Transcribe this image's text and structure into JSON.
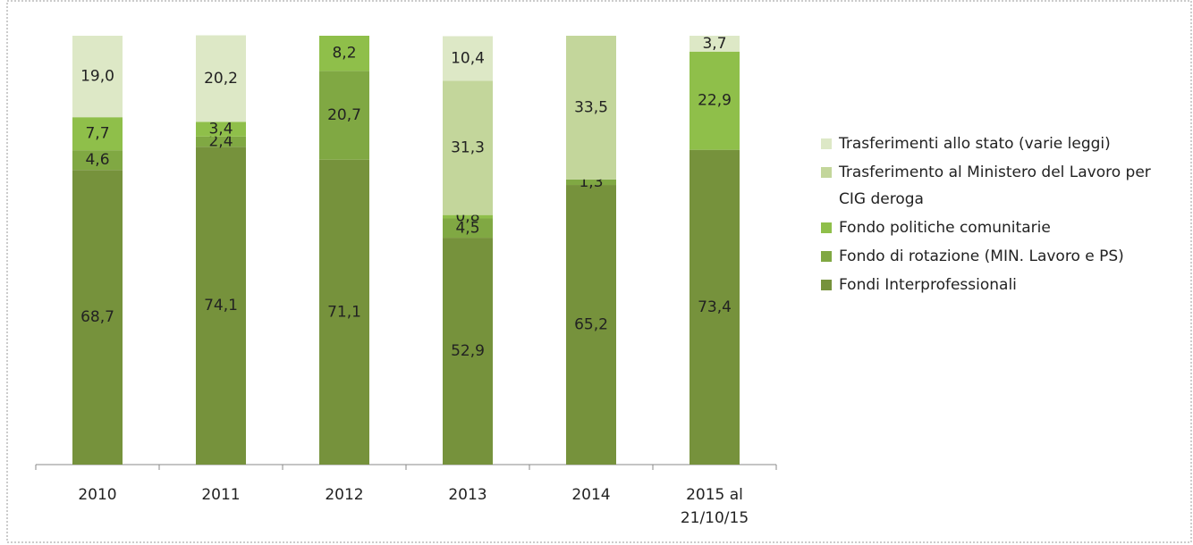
{
  "chart_data": {
    "type": "stacked_bar",
    "categories": [
      "2010",
      "2011",
      "2012",
      "2013",
      "2014",
      "2015 al\n21/10/15"
    ],
    "ylim": [
      0,
      100
    ],
    "series": [
      {
        "name": "Fondi Interprofessionali",
        "color": "#76923c",
        "values": [
          68.7,
          74.1,
          71.1,
          52.9,
          65.2,
          73.4
        ],
        "value_labels": [
          "68,7",
          "74,1",
          "71,1",
          "52,9",
          "65,2",
          "73,4"
        ]
      },
      {
        "name": "Fondo di rotazione (MIN. Lavoro e PS)",
        "color": "#80a843",
        "values": [
          4.6,
          2.4,
          20.7,
          4.5,
          1.3,
          null
        ],
        "value_labels": [
          "4,6",
          "2,4",
          "20,7",
          "4,5",
          "1,3",
          null
        ]
      },
      {
        "name": "Fondo politiche comunitarie",
        "color": "#8fbf4a",
        "values": [
          7.7,
          3.4,
          8.2,
          0.8,
          null,
          22.9
        ],
        "value_labels": [
          "7,7",
          "3,4",
          "8,2",
          "0,8",
          null,
          "22,9"
        ]
      },
      {
        "name": "Trasferimento al Ministero  del Lavoro per CIG deroga",
        "color": "#c3d69b",
        "values": [
          null,
          null,
          null,
          31.3,
          33.5,
          null
        ],
        "value_labels": [
          null,
          null,
          null,
          "31,3",
          "33,5",
          null
        ]
      },
      {
        "name": "Trasferimenti allo stato (varie leggi)",
        "color": "#dde8c6",
        "values": [
          19.0,
          20.2,
          null,
          10.4,
          null,
          3.7
        ],
        "value_labels": [
          "19,0",
          "20,2",
          null,
          "10,4",
          null,
          "3,7"
        ]
      }
    ],
    "legend": "right"
  }
}
